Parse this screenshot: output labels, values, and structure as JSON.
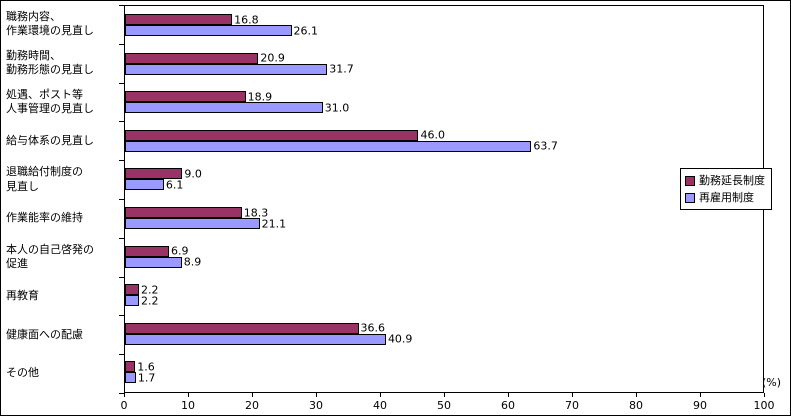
{
  "chart_data": {
    "type": "bar",
    "orientation": "horizontal",
    "title": "",
    "unit_label": "(%)",
    "xlabel": "",
    "ylabel": "",
    "xlim": [
      0,
      100
    ],
    "xticks": [
      0,
      10,
      20,
      30,
      40,
      50,
      60,
      70,
      80,
      90,
      100
    ],
    "grid": false,
    "legend_position": "right",
    "categories": [
      "職務内容、\n作業環境の見直し",
      "勤務時間、\n勤務形態の見直し",
      "処遇、ポスト等\n人事管理の見直し",
      "給与体系の見直し",
      "退職給付制度の\n見直し",
      "作業能率の維持",
      "本人の自己啓発の\n促進",
      "再教育",
      "健康面への配慮",
      "その他"
    ],
    "series": [
      {
        "name": "勤務延長制度",
        "color": "#993366",
        "values": [
          16.8,
          20.9,
          18.9,
          46.0,
          9.0,
          18.3,
          6.9,
          2.2,
          36.6,
          1.6
        ]
      },
      {
        "name": "再雇用制度",
        "color": "#9999FF",
        "values": [
          26.1,
          31.7,
          31.0,
          63.7,
          6.1,
          21.1,
          8.9,
          2.2,
          40.9,
          1.7
        ]
      }
    ]
  }
}
